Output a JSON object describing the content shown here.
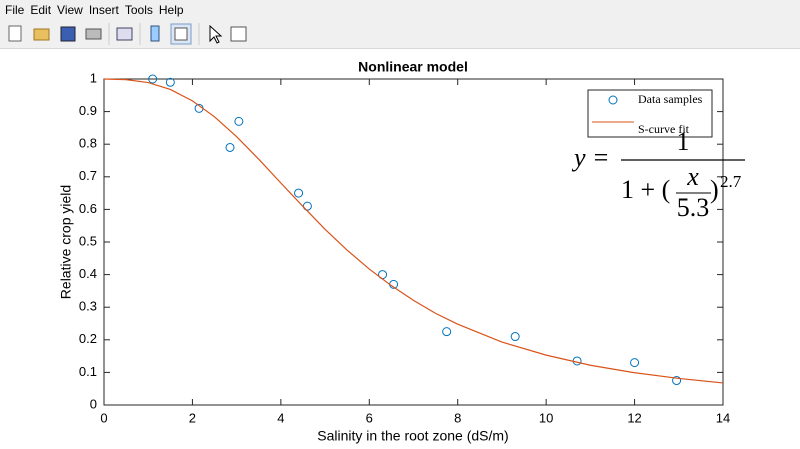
{
  "menu": [
    "File",
    "Edit",
    "View",
    "Insert",
    "Tools",
    "Help"
  ],
  "chart_data": {
    "type": "scatter",
    "title": "Nonlinear model",
    "xlabel": "Salinity in the root zone (dS/m)",
    "ylabel": "Relative crop yield",
    "xlim": [
      0,
      14
    ],
    "ylim": [
      0,
      1
    ],
    "xticks": [
      0,
      2,
      4,
      6,
      8,
      10,
      12,
      14
    ],
    "yticks": [
      0,
      0.1,
      0.2,
      0.3,
      0.4,
      0.5,
      0.6,
      0.7,
      0.8,
      0.9,
      1
    ],
    "grid": false,
    "legend": "northeast",
    "series": [
      {
        "name": "Data samples",
        "type": "scatter",
        "color": "#0072bd",
        "x": [
          1.1,
          1.5,
          2.15,
          2.85,
          3.05,
          4.4,
          4.6,
          6.3,
          6.55,
          7.75,
          9.3,
          10.7,
          12.0,
          12.95
        ],
        "values": [
          1.0,
          0.99,
          0.91,
          0.79,
          0.87,
          0.65,
          0.61,
          0.4,
          0.37,
          0.225,
          0.21,
          0.135,
          0.13,
          0.075
        ]
      },
      {
        "name": "S-curve fit",
        "type": "line",
        "color": "#d95319",
        "x": [
          0,
          0.5,
          1,
          1.5,
          2,
          2.5,
          3,
          3.5,
          4,
          4.5,
          5,
          5.5,
          6,
          6.5,
          7,
          7.5,
          8,
          9,
          10,
          11,
          12,
          13,
          14
        ],
        "values": [
          1,
          0.998,
          0.989,
          0.968,
          0.933,
          0.884,
          0.823,
          0.754,
          0.681,
          0.609,
          0.539,
          0.475,
          0.417,
          0.366,
          0.321,
          0.281,
          0.248,
          0.193,
          0.153,
          0.122,
          0.099,
          0.0815,
          0.0677
        ]
      }
    ],
    "equation": {
      "lhs": "y =",
      "numerator": "1",
      "denominator_start": "1 + (",
      "inner_numerator": "x",
      "inner_denominator": "5.3",
      "denominator_close": ")",
      "exponent": "2.7"
    }
  }
}
